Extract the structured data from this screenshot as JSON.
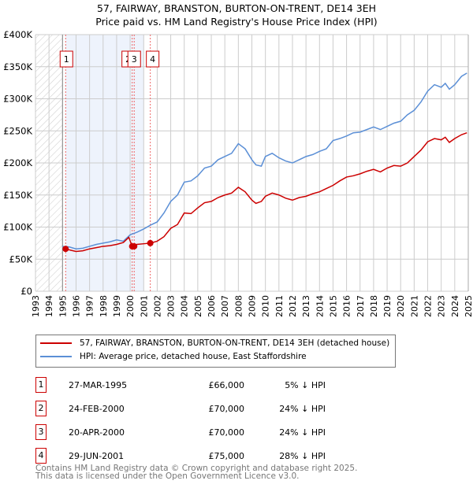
{
  "title": "57, FAIRWAY, BRANSTON, BURTON-ON-TRENT, DE14 3EH",
  "subtitle": "Price paid vs. HM Land Registry's House Price Index (HPI)",
  "chart_data": {
    "type": "line",
    "xlim": [
      1993,
      2025
    ],
    "ylim": [
      0,
      400000
    ],
    "yticks": [
      0,
      50000,
      100000,
      150000,
      200000,
      250000,
      300000,
      350000,
      400000
    ],
    "ytick_labels": [
      "£0",
      "£50K",
      "£100K",
      "£150K",
      "£200K",
      "£250K",
      "£300K",
      "£350K",
      "£400K"
    ],
    "xticks": [
      1993,
      1994,
      1995,
      1996,
      1997,
      1998,
      1999,
      2000,
      2001,
      2002,
      2003,
      2004,
      2005,
      2006,
      2007,
      2008,
      2009,
      2010,
      2011,
      2012,
      2013,
      2014,
      2015,
      2016,
      2017,
      2018,
      2019,
      2020,
      2021,
      2022,
      2023,
      2024,
      2025
    ],
    "hatched_range": [
      1993,
      1995
    ],
    "shaded_range": [
      1995.23,
      2001.0
    ],
    "grid": true,
    "series": [
      {
        "name": "57, FAIRWAY, BRANSTON, BURTON-ON-TRENT, DE14 3EH (detached house)",
        "color": "#cc0000",
        "x": [
          1995.23,
          1995.6,
          1996,
          1996.5,
          1997,
          1997.5,
          1998,
          1998.5,
          1999,
          1999.5,
          1999.9,
          2000.15,
          2000.5,
          2001,
          2001.5,
          2002,
          2002.5,
          2003,
          2003.5,
          2004,
          2004.5,
          2005,
          2005.5,
          2006,
          2006.5,
          2007,
          2007.5,
          2008,
          2008.5,
          2009,
          2009.3,
          2009.7,
          2010,
          2010.5,
          2011,
          2011.5,
          2012,
          2012.5,
          2013,
          2013.5,
          2014,
          2014.5,
          2015,
          2015.5,
          2016,
          2016.5,
          2017,
          2017.5,
          2018,
          2018.5,
          2019,
          2019.5,
          2020,
          2020.5,
          2021,
          2021.5,
          2022,
          2022.5,
          2023,
          2023.3,
          2023.6,
          2024,
          2024.5,
          2024.9
        ],
        "y": [
          66000,
          64000,
          62000,
          63000,
          66000,
          68000,
          70000,
          71000,
          73000,
          76000,
          84000,
          70000,
          73000,
          74000,
          75000,
          78000,
          85000,
          98000,
          104000,
          122000,
          121000,
          130000,
          138000,
          140000,
          146000,
          150000,
          153000,
          162000,
          155000,
          142000,
          137000,
          140000,
          148000,
          153000,
          150000,
          145000,
          142000,
          146000,
          148000,
          152000,
          155000,
          160000,
          165000,
          172000,
          178000,
          180000,
          183000,
          187000,
          190000,
          186000,
          192000,
          196000,
          195000,
          200000,
          210000,
          220000,
          233000,
          238000,
          236000,
          240000,
          232000,
          238000,
          244000,
          247000
        ]
      },
      {
        "name": "HPI: Average price, detached house, East Staffordshire",
        "color": "#5b8fd6",
        "x": [
          1995,
          1995.5,
          1996,
          1996.5,
          1997,
          1997.5,
          1998,
          1998.5,
          1999,
          1999.5,
          2000,
          2000.5,
          2001,
          2001.5,
          2002,
          2002.5,
          2003,
          2003.5,
          2004,
          2004.5,
          2005,
          2005.5,
          2006,
          2006.5,
          2007,
          2007.5,
          2008,
          2008.5,
          2009,
          2009.3,
          2009.7,
          2010,
          2010.5,
          2011,
          2011.5,
          2012,
          2012.5,
          2013,
          2013.5,
          2014,
          2014.5,
          2015,
          2015.5,
          2016,
          2016.5,
          2017,
          2017.5,
          2018,
          2018.5,
          2019,
          2019.5,
          2020,
          2020.5,
          2021,
          2021.5,
          2022,
          2022.5,
          2023,
          2023.3,
          2023.6,
          2024,
          2024.5,
          2024.9
        ],
        "y": [
          70000,
          69000,
          66000,
          67000,
          70000,
          73000,
          75000,
          77000,
          80000,
          78000,
          88000,
          92000,
          97000,
          103000,
          108000,
          122000,
          140000,
          150000,
          170000,
          172000,
          180000,
          192000,
          195000,
          205000,
          210000,
          215000,
          230000,
          222000,
          205000,
          197000,
          195000,
          210000,
          215000,
          208000,
          203000,
          200000,
          205000,
          210000,
          213000,
          218000,
          222000,
          235000,
          238000,
          242000,
          247000,
          248000,
          252000,
          256000,
          252000,
          257000,
          262000,
          265000,
          275000,
          282000,
          295000,
          312000,
          322000,
          318000,
          324000,
          315000,
          322000,
          335000,
          340000
        ]
      }
    ],
    "sales": [
      {
        "label": "1",
        "x": 1995.23,
        "price": 66000
      },
      {
        "label": "2",
        "x": 2000.15,
        "price": 70000
      },
      {
        "label": "3",
        "x": 2000.3,
        "price": 70000
      },
      {
        "label": "4",
        "x": 2001.49,
        "price": 75000
      }
    ]
  },
  "legend": [
    {
      "label": "57, FAIRWAY, BRANSTON, BURTON-ON-TRENT, DE14 3EH (detached house)",
      "color": "#cc0000"
    },
    {
      "label": "HPI: Average price, detached house, East Staffordshire",
      "color": "#5b8fd6"
    }
  ],
  "table": [
    {
      "num": "1",
      "date": "27-MAR-1995",
      "price": "£66,000",
      "hpi": "5% ↓ HPI"
    },
    {
      "num": "2",
      "date": "24-FEB-2000",
      "price": "£70,000",
      "hpi": "24% ↓ HPI"
    },
    {
      "num": "3",
      "date": "20-APR-2000",
      "price": "£70,000",
      "hpi": "24% ↓ HPI"
    },
    {
      "num": "4",
      "date": "29-JUN-2001",
      "price": "£75,000",
      "hpi": "28% ↓ HPI"
    }
  ],
  "footer": [
    "Contains HM Land Registry data © Crown copyright and database right 2025.",
    "This data is licensed under the Open Government Licence v3.0."
  ]
}
